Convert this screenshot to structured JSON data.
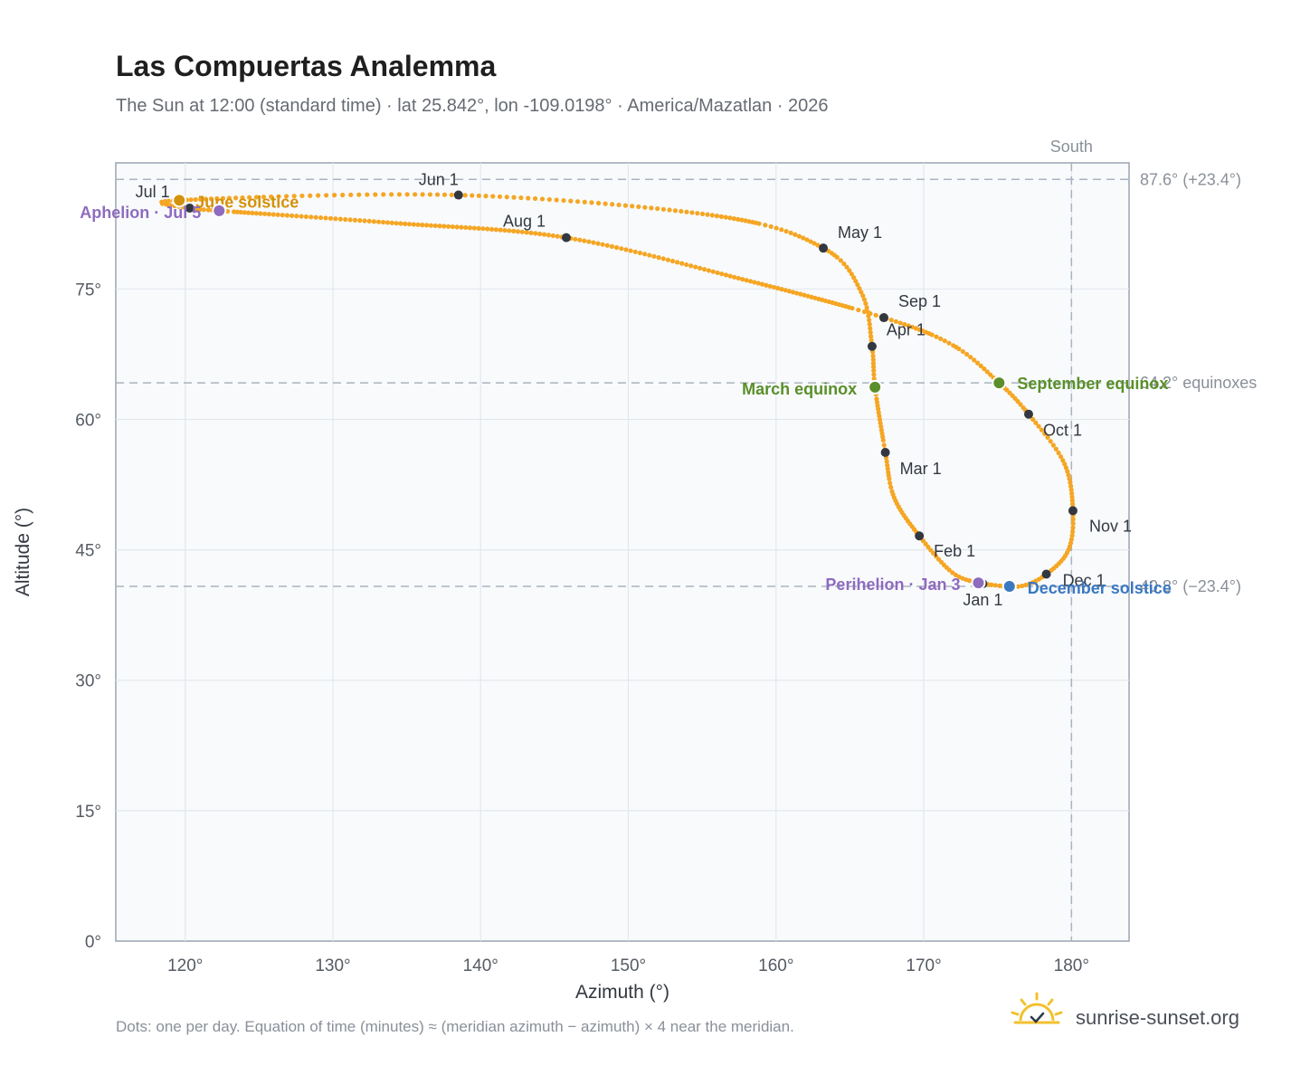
{
  "chart_data": {
    "type": "scatter",
    "title": "Las Compuertas Analemma",
    "subtitle": "The Sun at 12:00 (standard time) · lat 25.842°, lon -109.0198° · America/Mazatlan · 2026",
    "xlabel": "Azimuth (°)",
    "ylabel": "Altitude (°)",
    "xlim": [
      115.3,
      183.9
    ],
    "ylim": [
      0,
      89.5
    ],
    "xticks": [
      120,
      130,
      140,
      150,
      160,
      170,
      180
    ],
    "xtick_labels": [
      "120°",
      "130°",
      "140°",
      "150°",
      "160°",
      "170°",
      "180°"
    ],
    "yticks": [
      0,
      15,
      30,
      45,
      60,
      75
    ],
    "ytick_labels": [
      "0°",
      "15°",
      "30°",
      "45°",
      "60°",
      "75°"
    ],
    "grid": true,
    "series_color": "#f5a623",
    "reference_lines": {
      "horizontal": [
        {
          "y": 87.6,
          "label": "87.6° (+23.4°)"
        },
        {
          "y": 64.2,
          "label": "64.2° equinoxes"
        },
        {
          "y": 40.8,
          "label": "40.8° (−23.4°)"
        }
      ],
      "vertical": [
        {
          "x": 180,
          "label": "South"
        }
      ]
    },
    "month_markers": [
      {
        "label": "Jan 1",
        "x": 174.0,
        "y": 41.1
      },
      {
        "label": "Feb 1",
        "x": 169.7,
        "y": 46.6
      },
      {
        "label": "Mar 1",
        "x": 167.4,
        "y": 56.2
      },
      {
        "label": "Apr 1",
        "x": 166.5,
        "y": 68.4
      },
      {
        "label": "May 1",
        "x": 163.2,
        "y": 79.7
      },
      {
        "label": "Jun 1",
        "x": 138.5,
        "y": 85.8
      },
      {
        "label": "Jul 1",
        "x": 120.3,
        "y": 84.3
      },
      {
        "label": "Aug 1",
        "x": 145.8,
        "y": 80.9
      },
      {
        "label": "Sep 1",
        "x": 167.3,
        "y": 71.7
      },
      {
        "label": "Oct 1",
        "x": 177.1,
        "y": 60.6
      },
      {
        "label": "Nov 1",
        "x": 180.1,
        "y": 49.5
      },
      {
        "label": "Dec 1",
        "x": 178.3,
        "y": 42.2
      }
    ],
    "events": [
      {
        "label": "March equinox",
        "x": 166.7,
        "y": 63.7,
        "color": "#5a8f29"
      },
      {
        "label": "June solstice",
        "x": 119.6,
        "y": 85.2,
        "color": "#d4920b"
      },
      {
        "label": "September equinox",
        "x": 175.1,
        "y": 64.2,
        "color": "#5a8f29"
      },
      {
        "label": "December solstice",
        "x": 175.8,
        "y": 40.8,
        "color": "#3a78c2"
      },
      {
        "label": "Perihelion · Jan 3",
        "x": 173.7,
        "y": 41.2,
        "color": "#8e6bbf"
      },
      {
        "label": "Aphelion · Jul 5",
        "x": 122.3,
        "y": 84.0,
        "color": "#8e6bbf"
      }
    ],
    "path_keypoints": [
      {
        "x": 174.0,
        "y": 41.1
      },
      {
        "x": 172.0,
        "y": 42.3
      },
      {
        "x": 169.7,
        "y": 46.6
      },
      {
        "x": 168.0,
        "y": 51.0
      },
      {
        "x": 167.4,
        "y": 56.2
      },
      {
        "x": 166.7,
        "y": 63.7
      },
      {
        "x": 166.5,
        "y": 68.4
      },
      {
        "x": 165.8,
        "y": 74.5
      },
      {
        "x": 163.2,
        "y": 79.7
      },
      {
        "x": 156.0,
        "y": 83.4
      },
      {
        "x": 138.5,
        "y": 85.8
      },
      {
        "x": 119.6,
        "y": 85.2
      },
      {
        "x": 120.3,
        "y": 84.3
      },
      {
        "x": 122.3,
        "y": 84.0
      },
      {
        "x": 134.0,
        "y": 82.6
      },
      {
        "x": 145.8,
        "y": 80.9
      },
      {
        "x": 158.0,
        "y": 76.0
      },
      {
        "x": 167.3,
        "y": 71.7
      },
      {
        "x": 172.0,
        "y": 68.5
      },
      {
        "x": 175.1,
        "y": 64.2
      },
      {
        "x": 177.1,
        "y": 60.6
      },
      {
        "x": 179.5,
        "y": 55.0
      },
      {
        "x": 180.1,
        "y": 49.5
      },
      {
        "x": 179.8,
        "y": 45.0
      },
      {
        "x": 178.3,
        "y": 42.2
      },
      {
        "x": 176.5,
        "y": 40.8
      },
      {
        "x": 174.0,
        "y": 41.1
      }
    ],
    "footnote": "Dots: one per day. Equation of time (minutes) ≈ (meridian azimuth − azimuth) × 4 near the meridian."
  },
  "brand": {
    "name": "sunrise-sunset.org",
    "icon": "sun-logo-icon"
  }
}
